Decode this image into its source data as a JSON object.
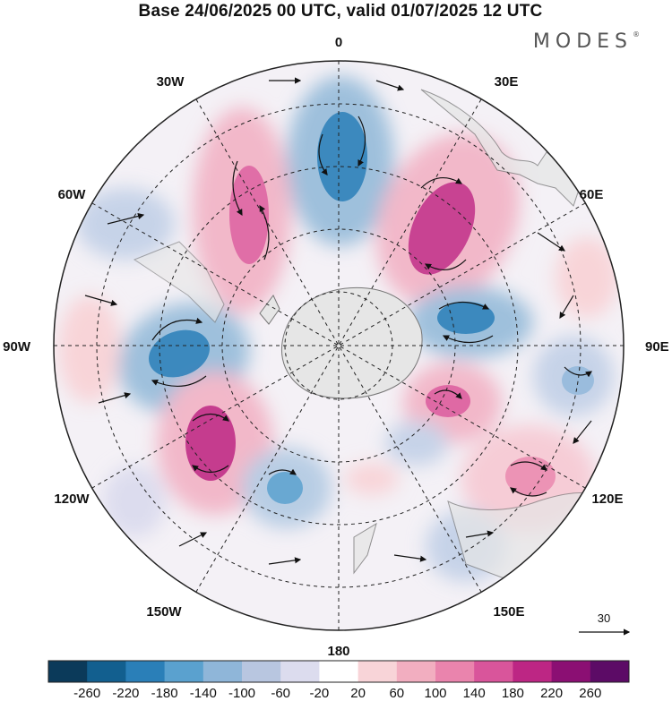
{
  "title": "Base 24/06/2025 00 UTC, valid 01/07/2025 12 UTC",
  "brand": "MODES",
  "brand_mark": "®",
  "longitude_labels": {
    "lon_0": "0",
    "lon_30e": "30E",
    "lon_60e": "60E",
    "lon_90e": "90E",
    "lon_120e": "120E",
    "lon_150e": "150E",
    "lon_180": "180",
    "lon_150w": "150W",
    "lon_120w": "120W",
    "lon_90w": "90W",
    "lon_60w": "60W",
    "lon_30w": "30W"
  },
  "vector_reference": {
    "label": "30"
  },
  "colorbar": {
    "colors": [
      "#0b3a5a",
      "#125f8f",
      "#2a7fb8",
      "#5aa1cf",
      "#8fb6d9",
      "#b8c6e0",
      "#dcdcee",
      "#ffffff",
      "#f8d4d8",
      "#f2aec0",
      "#ea84ad",
      "#d9559b",
      "#bd2684",
      "#8b0f73",
      "#5c0b66"
    ],
    "labels": [
      "-260",
      "-220",
      "-180",
      "-140",
      "-100",
      "-60",
      "-20",
      "20",
      "60",
      "100",
      "140",
      "180",
      "220",
      "260"
    ]
  },
  "map_colors": {
    "land": "#e6e6e6",
    "coast": "#777777",
    "grid": "#222222",
    "arrows": "#111111"
  }
}
